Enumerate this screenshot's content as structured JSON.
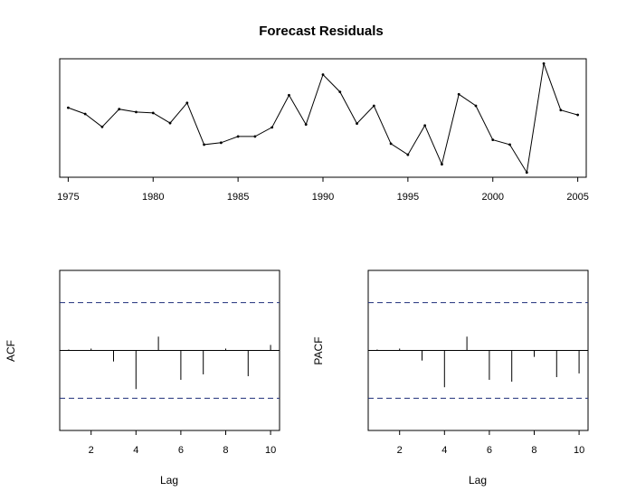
{
  "chart_data": [
    {
      "type": "line",
      "title": "Forecast Residuals",
      "xlabel": "",
      "ylabel": "",
      "x": [
        1975,
        1976,
        1977,
        1978,
        1979,
        1980,
        1981,
        1982,
        1983,
        1984,
        1985,
        1986,
        1987,
        1988,
        1989,
        1990,
        1991,
        1992,
        1993,
        1994,
        1995,
        1996,
        1997,
        1998,
        1999,
        2000,
        2001,
        2002,
        2003,
        2004,
        2005
      ],
      "y": [
        0.35,
        0.22,
        -0.05,
        0.32,
        0.26,
        0.24,
        0.03,
        0.45,
        -0.42,
        -0.38,
        -0.25,
        -0.25,
        -0.06,
        0.61,
        0.0,
        1.04,
        0.68,
        0.02,
        0.39,
        -0.4,
        -0.63,
        -0.02,
        -0.83,
        0.63,
        0.39,
        -0.32,
        -0.42,
        -1.0,
        1.27,
        0.3,
        0.2
      ],
      "xticks": [
        "1975",
        "1980",
        "1985",
        "1990",
        "1995",
        "2000",
        "2005"
      ],
      "xlim": [
        1974.5,
        2005.5
      ],
      "ylim": [
        -1.1,
        1.37
      ],
      "show_y_axis": false,
      "grid": false
    },
    {
      "type": "bar",
      "ylabel": "ACF",
      "xlabel": "Lag",
      "x": [
        1,
        2,
        3,
        4,
        5,
        6,
        7,
        8,
        9,
        10
      ],
      "values": [
        0.01,
        0.02,
        -0.12,
        -0.42,
        0.15,
        -0.32,
        -0.26,
        0.02,
        -0.28,
        0.06
      ],
      "conf_limit": 0.52,
      "xticks": [
        "2",
        "4",
        "6",
        "8",
        "10"
      ],
      "xlim": [
        0.6,
        10.4
      ],
      "ylim": [
        -0.87,
        0.87
      ],
      "show_y_axis": false
    },
    {
      "type": "bar",
      "ylabel": "PACF",
      "xlabel": "Lag",
      "x": [
        1,
        2,
        3,
        4,
        5,
        6,
        7,
        8,
        9,
        10
      ],
      "values": [
        0.01,
        0.02,
        -0.11,
        -0.4,
        0.15,
        -0.32,
        -0.34,
        -0.07,
        -0.29,
        -0.25
      ],
      "conf_limit": 0.52,
      "xticks": [
        "2",
        "4",
        "6",
        "8",
        "10"
      ],
      "xlim": [
        0.6,
        10.4
      ],
      "ylim": [
        -0.87,
        0.87
      ],
      "show_y_axis": false
    }
  ]
}
